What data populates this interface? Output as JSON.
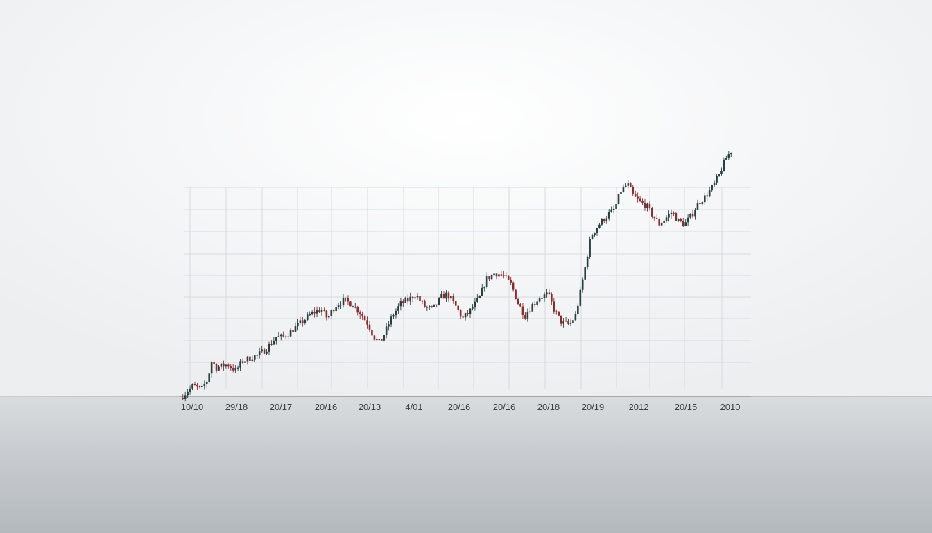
{
  "chart_data": {
    "type": "candlestick",
    "title": "",
    "xlabel": "",
    "ylabel": "",
    "grid": true,
    "legend": "none",
    "x_tick_labels": [
      "10/10",
      "29/18",
      "20/17",
      "20/16",
      "20/13",
      "4/01",
      "20/16",
      "20/16",
      "20/18",
      "20/19",
      "2012",
      "20/15",
      "2010"
    ],
    "ylim": [
      0,
      100
    ],
    "colors": {
      "up": "#26403f",
      "down": "#8e2a2e",
      "grid": "#d7dadd",
      "axis": "#9aa0a6"
    },
    "path_points": [
      [
        0,
        6
      ],
      [
        0.7,
        8
      ],
      [
        1.5,
        10
      ],
      [
        2.5,
        9
      ],
      [
        3.2,
        12
      ],
      [
        3.6,
        18
      ],
      [
        4.2,
        16
      ],
      [
        5.5,
        17
      ],
      [
        6.5,
        15
      ],
      [
        7.2,
        18
      ],
      [
        8.0,
        19
      ],
      [
        9.0,
        20
      ],
      [
        10.0,
        22
      ],
      [
        11.2,
        26
      ],
      [
        12.0,
        26
      ],
      [
        13.0,
        28
      ],
      [
        14.2,
        31
      ],
      [
        15.5,
        34
      ],
      [
        16.5,
        35
      ],
      [
        17.2,
        32
      ],
      [
        18.0,
        36
      ],
      [
        19.0,
        38
      ],
      [
        20.0,
        37
      ],
      [
        21.0,
        34
      ],
      [
        22.0,
        30
      ],
      [
        22.6,
        26
      ],
      [
        23.3,
        24
      ],
      [
        24.0,
        28
      ],
      [
        24.8,
        33
      ],
      [
        25.8,
        37
      ],
      [
        26.6,
        38
      ],
      [
        27.5,
        40
      ],
      [
        28.5,
        36
      ],
      [
        29.5,
        35
      ],
      [
        30.5,
        39
      ],
      [
        31.2,
        40
      ],
      [
        32.0,
        37
      ],
      [
        33.0,
        32
      ],
      [
        34.0,
        35
      ],
      [
        35.0,
        39
      ],
      [
        35.8,
        45
      ],
      [
        36.8,
        47
      ],
      [
        37.8,
        46
      ],
      [
        38.7,
        43
      ],
      [
        39.5,
        37
      ],
      [
        40.3,
        33
      ],
      [
        41.0,
        36
      ],
      [
        42.0,
        39
      ],
      [
        43.0,
        40
      ],
      [
        43.7,
        35
      ],
      [
        44.5,
        31
      ],
      [
        45.5,
        30
      ],
      [
        46.2,
        33
      ],
      [
        46.8,
        41
      ],
      [
        47.4,
        50
      ],
      [
        48.0,
        59
      ],
      [
        49.0,
        63
      ],
      [
        50.0,
        66
      ],
      [
        50.8,
        68
      ],
      [
        51.5,
        74
      ],
      [
        52.3,
        76
      ],
      [
        53.0,
        72
      ],
      [
        53.8,
        70
      ],
      [
        54.5,
        69
      ],
      [
        55.2,
        66
      ],
      [
        56.0,
        63
      ],
      [
        56.8,
        65
      ],
      [
        57.5,
        67
      ],
      [
        58.2,
        64
      ],
      [
        59.0,
        63
      ],
      [
        59.8,
        66
      ],
      [
        60.6,
        70
      ],
      [
        61.4,
        72
      ],
      [
        62.2,
        75
      ],
      [
        63.0,
        79
      ],
      [
        63.7,
        84
      ],
      [
        64.4,
        87
      ]
    ]
  }
}
